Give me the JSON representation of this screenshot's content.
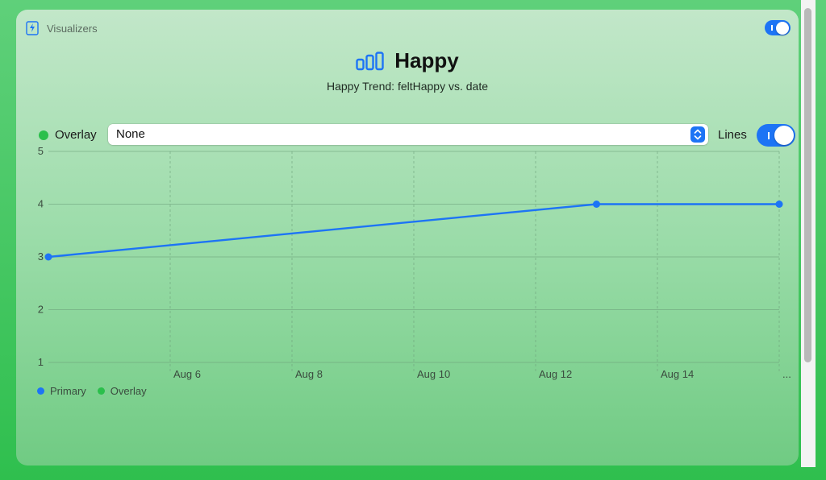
{
  "header": {
    "title": "Visualizers",
    "icon": "document-bolt-icon"
  },
  "title": {
    "text": "Happy",
    "subtitle": "Happy Trend: feltHappy vs. date",
    "icon": "bar-chart-icon"
  },
  "controls": {
    "overlay_label": "Overlay",
    "overlay_value": "None",
    "lines_label": "Lines",
    "lines_on": true,
    "top_toggle_on": true
  },
  "colors": {
    "primary": "#1d74f5",
    "overlay": "#2bbf4b",
    "grid": "#6fa37c"
  },
  "chart_data": {
    "type": "line",
    "x_ticks": [
      "Aug 6",
      "Aug 8",
      "Aug 10",
      "Aug 12",
      "Aug 14",
      "..."
    ],
    "y_ticks": [
      "5",
      "4",
      "3",
      "2",
      "1"
    ],
    "ylim": [
      1,
      5
    ],
    "xlim": [
      "Aug 4",
      "Aug 16"
    ],
    "series": [
      {
        "name": "Primary",
        "x": [
          "Aug 4",
          "Aug 13",
          "Aug 16"
        ],
        "y": [
          3,
          4,
          4
        ]
      }
    ],
    "legend": [
      {
        "label": "Primary"
      },
      {
        "label": "Overlay"
      }
    ],
    "grid": true,
    "legend_position": "bottom-left"
  }
}
